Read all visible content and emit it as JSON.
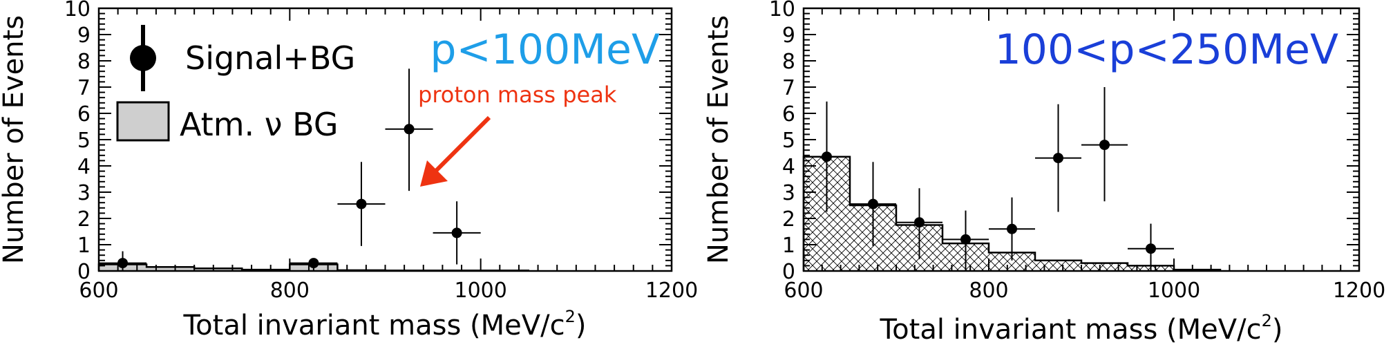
{
  "colors": {
    "range1": "#1e9ee8",
    "range2": "#1a3fd8",
    "annotation": "#ee3311",
    "bg_fill": "#cfcfcf"
  },
  "chart_data": [
    {
      "type": "bar",
      "title": "",
      "xlabel_main": "Total invariant mass (MeV/c",
      "xlabel_sup": "2",
      "xlabel_end": ")",
      "ylabel": "Number of Events",
      "xlim": [
        600,
        1200
      ],
      "ylim": [
        0,
        10
      ],
      "xticks": [
        "600",
        "800",
        "1000",
        "1200"
      ],
      "yticks": [
        "0",
        "1",
        "2",
        "3",
        "4",
        "5",
        "6",
        "7",
        "8",
        "9",
        "10"
      ],
      "range_label": "p<100MeV",
      "legend": {
        "position": "top-left",
        "data_label": "Signal+BG",
        "bg_label": "Atm. ν BG"
      },
      "annotation": "proton mass peak",
      "background_hist": {
        "name": "Atm. ν BG",
        "fill": "solid",
        "edges": [
          600,
          650,
          700,
          750,
          800,
          850,
          900,
          950,
          1000,
          1050
        ],
        "values": [
          0.25,
          0.15,
          0.1,
          0.05,
          0.25,
          0.03,
          0.02,
          0.02,
          0.02
        ]
      },
      "data_points": {
        "name": "Signal+BG",
        "x": [
          625,
          825,
          875,
          925,
          975
        ],
        "y": [
          0.3,
          0.3,
          2.55,
          5.4,
          1.45
        ],
        "xerr": [
          25,
          25,
          25,
          25,
          25
        ],
        "yerr_low": [
          0.3,
          0.3,
          1.6,
          2.35,
          1.2
        ],
        "yerr_high": [
          0.45,
          0.0,
          1.6,
          2.3,
          1.2
        ]
      }
    },
    {
      "type": "bar",
      "title": "",
      "xlabel_main": "Total invariant mass (MeV/c",
      "xlabel_sup": "2",
      "xlabel_end": ")",
      "ylabel": "Number of Events",
      "xlim": [
        600,
        1200
      ],
      "ylim": [
        0,
        10
      ],
      "xticks": [
        "600",
        "800",
        "1000",
        "1200"
      ],
      "yticks": [
        "0",
        "1",
        "2",
        "3",
        "4",
        "5",
        "6",
        "7",
        "8",
        "9",
        "10"
      ],
      "range_label": "100<p<250MeV",
      "background_hist": {
        "name": "Atm. ν BG",
        "fill": "crosshatch",
        "edges": [
          600,
          650,
          700,
          750,
          800,
          850,
          900,
          950,
          1000,
          1050
        ],
        "values": [
          4.35,
          2.5,
          1.75,
          1.05,
          0.7,
          0.4,
          0.3,
          0.2,
          0.05
        ]
      },
      "data_points": {
        "name": "Signal+BG",
        "x": [
          625,
          675,
          725,
          775,
          825,
          875,
          925,
          975
        ],
        "y": [
          4.35,
          2.55,
          1.85,
          1.2,
          1.6,
          4.3,
          4.8,
          0.85
        ],
        "xerr": [
          25,
          25,
          25,
          25,
          25,
          25,
          25,
          25
        ],
        "yerr_low": [
          2.1,
          1.6,
          1.4,
          1.2,
          1.2,
          2.05,
          2.15,
          0.85
        ],
        "yerr_high": [
          2.1,
          1.6,
          1.3,
          1.1,
          1.2,
          2.05,
          2.2,
          0.95
        ]
      }
    }
  ]
}
